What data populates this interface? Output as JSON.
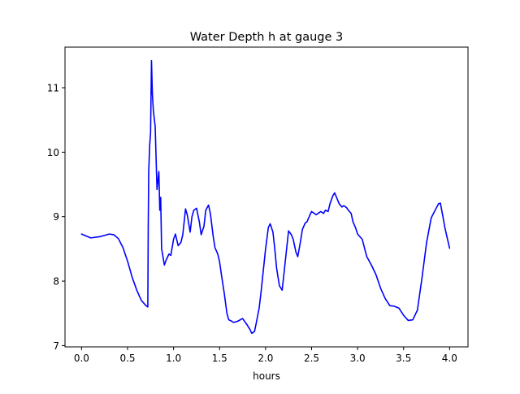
{
  "chart_data": {
    "type": "line",
    "title": "Water Depth h at gauge 3",
    "xlabel": "hours",
    "ylabel": "",
    "xlim": [
      -0.18,
      4.2
    ],
    "ylim": [
      6.98,
      11.63
    ],
    "xticks": [
      0.0,
      0.5,
      1.0,
      1.5,
      2.0,
      2.5,
      3.0,
      3.5,
      4.0
    ],
    "xtick_labels": [
      "0.0",
      "0.5",
      "1.0",
      "1.5",
      "2.0",
      "2.5",
      "3.0",
      "3.5",
      "4.0"
    ],
    "yticks": [
      7,
      8,
      9,
      10,
      11
    ],
    "ytick_labels": [
      "7",
      "8",
      "9",
      "10",
      "11"
    ],
    "grid": false,
    "legend": "none",
    "series": [
      {
        "color": "#0000ff",
        "x": [
          0.0,
          0.05,
          0.1,
          0.15,
          0.2,
          0.25,
          0.3,
          0.35,
          0.4,
          0.45,
          0.5,
          0.55,
          0.6,
          0.65,
          0.7,
          0.72,
          0.725,
          0.73,
          0.74,
          0.75,
          0.76,
          0.77,
          0.78,
          0.8,
          0.82,
          0.84,
          0.85,
          0.86,
          0.87,
          0.88,
          0.9,
          0.92,
          0.95,
          0.97,
          1.0,
          1.02,
          1.05,
          1.08,
          1.1,
          1.13,
          1.15,
          1.18,
          1.2,
          1.22,
          1.25,
          1.28,
          1.3,
          1.33,
          1.35,
          1.38,
          1.4,
          1.43,
          1.45,
          1.48,
          1.5,
          1.52,
          1.55,
          1.58,
          1.6,
          1.63,
          1.65,
          1.68,
          1.7,
          1.75,
          1.8,
          1.83,
          1.85,
          1.88,
          1.9,
          1.93,
          1.95,
          2.0,
          2.03,
          2.05,
          2.08,
          2.1,
          2.12,
          2.15,
          2.18,
          2.2,
          2.23,
          2.25,
          2.28,
          2.3,
          2.33,
          2.35,
          2.38,
          2.4,
          2.43,
          2.45,
          2.48,
          2.5,
          2.53,
          2.55,
          2.58,
          2.6,
          2.63,
          2.65,
          2.68,
          2.7,
          2.73,
          2.75,
          2.78,
          2.8,
          2.83,
          2.85,
          2.88,
          2.9,
          2.93,
          2.95,
          2.98,
          3.0,
          3.05,
          3.1,
          3.15,
          3.2,
          3.25,
          3.3,
          3.35,
          3.4,
          3.45,
          3.5,
          3.55,
          3.6,
          3.65,
          3.7,
          3.75,
          3.8,
          3.85,
          3.88,
          3.9,
          3.93,
          3.95,
          4.0
        ],
        "y": [
          8.73,
          8.7,
          8.67,
          8.68,
          8.69,
          8.71,
          8.73,
          8.72,
          8.66,
          8.52,
          8.31,
          8.06,
          7.86,
          7.7,
          7.62,
          7.6,
          8.9,
          9.7,
          10.1,
          10.3,
          11.42,
          10.9,
          10.65,
          10.4,
          9.42,
          9.7,
          9.1,
          9.3,
          8.5,
          8.42,
          8.25,
          8.33,
          8.42,
          8.4,
          8.65,
          8.73,
          8.55,
          8.6,
          8.72,
          9.12,
          9.02,
          8.76,
          9.0,
          9.1,
          9.13,
          8.92,
          8.72,
          8.85,
          9.1,
          9.18,
          9.05,
          8.7,
          8.52,
          8.42,
          8.3,
          8.1,
          7.82,
          7.5,
          7.4,
          7.38,
          7.36,
          7.37,
          7.38,
          7.42,
          7.32,
          7.25,
          7.19,
          7.22,
          7.36,
          7.58,
          7.82,
          8.5,
          8.83,
          8.89,
          8.76,
          8.5,
          8.2,
          7.93,
          7.86,
          8.12,
          8.52,
          8.78,
          8.72,
          8.65,
          8.45,
          8.38,
          8.62,
          8.8,
          8.9,
          8.92,
          9.02,
          9.08,
          9.05,
          9.03,
          9.06,
          9.08,
          9.05,
          9.1,
          9.08,
          9.2,
          9.32,
          9.37,
          9.27,
          9.2,
          9.15,
          9.17,
          9.14,
          9.1,
          9.05,
          8.92,
          8.82,
          8.73,
          8.65,
          8.38,
          8.25,
          8.1,
          7.89,
          7.73,
          7.62,
          7.61,
          7.58,
          7.47,
          7.39,
          7.4,
          7.55,
          8.05,
          8.6,
          8.98,
          9.12,
          9.2,
          9.21,
          8.98,
          8.82,
          8.51
        ]
      }
    ]
  }
}
